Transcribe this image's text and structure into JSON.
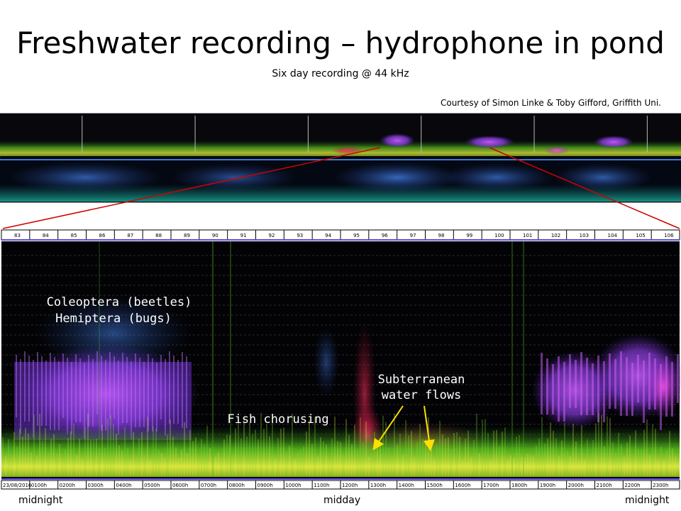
{
  "slide": {
    "title": "Freshwater recording – hydrophone in pond",
    "subtitle": "Six day recording @ 44 kHz",
    "courtesy": "Courtesy of Simon Linke & Toby Gifford, Griffith Uni."
  },
  "overview": {
    "day_marker_count": 6
  },
  "zoom_ruler": {
    "labels": [
      "83",
      "84",
      "85",
      "86",
      "87",
      "88",
      "89",
      "90",
      "91",
      "92",
      "93",
      "94",
      "95",
      "96",
      "97",
      "98",
      "99",
      "100",
      "101",
      "102",
      "103",
      "104",
      "105",
      "106"
    ]
  },
  "time_ruler": {
    "labels": [
      "23/08/2016",
      "0100h",
      "0200h",
      "0300h",
      "0400h",
      "0500h",
      "0600h",
      "0700h",
      "0800h",
      "0900h",
      "1000h",
      "1100h",
      "1200h",
      "1300h",
      "1400h",
      "1500h",
      "1600h",
      "1700h",
      "1800h",
      "1900h",
      "2000h",
      "2100h",
      "2200h",
      "2300h"
    ]
  },
  "annotations": {
    "beetles_line1": "Coleoptera (beetles)",
    "beetles_line2": "Hemiptera (bugs)",
    "fish": "Fish chorusing",
    "water_line1": "Subterranean",
    "water_line2": "water flows"
  },
  "axis_labels": {
    "left": "midnight",
    "center": "midday",
    "right": "midnight"
  },
  "colors": {
    "connector": "#d00000",
    "arrow": "#ffe000",
    "ruler_border": "#5b4de0"
  }
}
